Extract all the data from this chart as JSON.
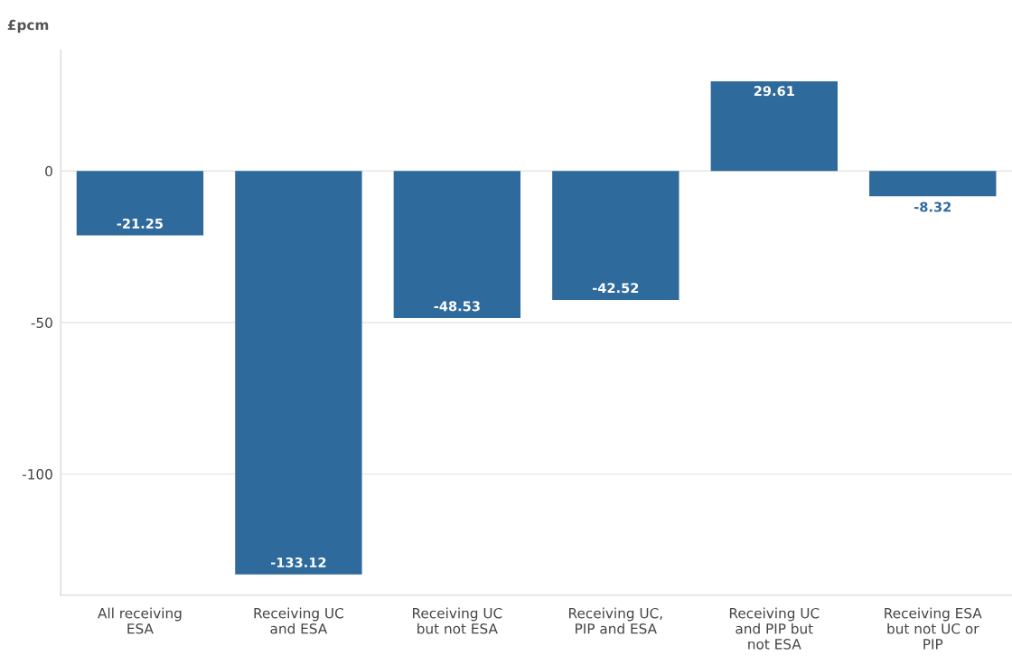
{
  "chart_data": {
    "type": "bar",
    "ylabel": "£pcm",
    "categories": [
      "All receiving ESA",
      "Receiving UC and ESA",
      "Receiving UC but not ESA",
      "Receiving UC, PIP and ESA",
      "Receiving UC and PIP but not ESA",
      "Receiving ESA but not UC or PIP"
    ],
    "values": [
      -21.25,
      -133.12,
      -48.53,
      -42.52,
      29.61,
      -8.32
    ],
    "color": "#2e6a9c",
    "ylim": [
      -140,
      40
    ],
    "yticks": [
      {
        "value": -100,
        "label": "-100"
      },
      {
        "value": -50,
        "label": "-50"
      },
      0
    ],
    "grid": "y",
    "data_labels": true
  }
}
